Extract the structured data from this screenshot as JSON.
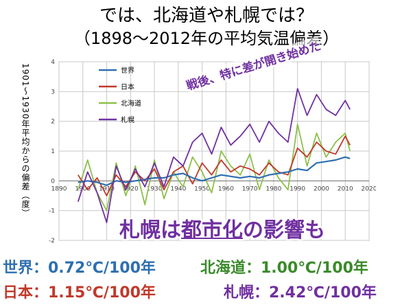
{
  "title": {
    "line1": "では、北海道や札幌では？",
    "line2": "（1898～2012年の平均気温偏差）"
  },
  "ylabel": "1901～1930年平均からの偏差（度）",
  "callouts": {
    "urban_part1": "札幌は",
    "urban_part2": "都市化",
    "urban_part3": "の影響も",
    "postwar": "戦後、特に差が開き始めた"
  },
  "stats": {
    "world": "世界：0.72℃/100年",
    "japan": "日本：1.15℃/100年",
    "hokkaido": "北海道：1.00℃/100年",
    "sapporo": "札幌：2.42℃/100年"
  },
  "colors": {
    "world": "#2e6fb0",
    "japan": "#c0392b",
    "hokkaido": "#8cc04a",
    "sapporo": "#7030a0"
  },
  "chart_data": {
    "type": "line",
    "title": "",
    "xlabel": "",
    "ylabel": "1901～1930年平均からの偏差（度）",
    "xlim": [
      1890,
      2020
    ],
    "ylim": [
      -2,
      4
    ],
    "xticks": [
      1890,
      1900,
      1910,
      1920,
      1930,
      1940,
      1950,
      1960,
      1970,
      1980,
      1990,
      2000,
      2010,
      2020
    ],
    "yticks": [
      -2,
      -1,
      0,
      1,
      2,
      3,
      4
    ],
    "grid": true,
    "legend_position": "top-left",
    "series": [
      {
        "name": "世界",
        "x": [
          1898,
          1902,
          1906,
          1910,
          1914,
          1918,
          1922,
          1926,
          1930,
          1934,
          1938,
          1942,
          1946,
          1950,
          1954,
          1958,
          1962,
          1966,
          1970,
          1974,
          1978,
          1982,
          1986,
          1990,
          1994,
          1998,
          2002,
          2006,
          2010,
          2012
        ],
        "y": [
          -0.05,
          0.0,
          -0.05,
          -0.15,
          0.0,
          -0.05,
          0.0,
          0.05,
          0.1,
          0.1,
          0.2,
          0.25,
          0.1,
          0.0,
          0.1,
          0.2,
          0.15,
          0.1,
          0.15,
          0.1,
          0.2,
          0.25,
          0.3,
          0.4,
          0.35,
          0.6,
          0.65,
          0.7,
          0.8,
          0.75
        ]
      },
      {
        "name": "日本",
        "x": [
          1898,
          1902,
          1906,
          1910,
          1914,
          1918,
          1922,
          1926,
          1930,
          1934,
          1938,
          1942,
          1946,
          1950,
          1954,
          1958,
          1962,
          1966,
          1970,
          1974,
          1978,
          1982,
          1986,
          1990,
          1994,
          1998,
          2002,
          2006,
          2010,
          2012
        ],
        "y": [
          0.2,
          -0.3,
          0.1,
          -0.5,
          0.2,
          -0.2,
          0.3,
          0.0,
          0.4,
          -0.3,
          0.3,
          0.5,
          -0.1,
          0.6,
          0.2,
          0.7,
          0.3,
          0.5,
          0.4,
          0.2,
          0.6,
          0.3,
          0.2,
          1.1,
          0.8,
          1.3,
          1.0,
          0.9,
          1.5,
          1.2
        ]
      },
      {
        "name": "北海道",
        "x": [
          1898,
          1902,
          1906,
          1910,
          1914,
          1918,
          1922,
          1926,
          1930,
          1934,
          1938,
          1942,
          1946,
          1950,
          1954,
          1958,
          1962,
          1966,
          1970,
          1974,
          1978,
          1982,
          1986,
          1990,
          1994,
          1998,
          2002,
          2006,
          2010,
          2012
        ],
        "y": [
          -0.3,
          0.7,
          -0.4,
          -1.0,
          0.6,
          -0.5,
          0.5,
          -0.8,
          0.7,
          -0.6,
          0.3,
          -0.2,
          0.8,
          0.3,
          -0.4,
          1.0,
          0.5,
          0.2,
          0.9,
          -0.3,
          0.7,
          0.1,
          -0.3,
          1.9,
          0.5,
          1.6,
          0.8,
          1.3,
          1.6,
          1.0
        ]
      },
      {
        "name": "札幌",
        "x": [
          1898,
          1902,
          1906,
          1910,
          1914,
          1918,
          1922,
          1926,
          1930,
          1934,
          1938,
          1942,
          1946,
          1950,
          1954,
          1958,
          1962,
          1966,
          1970,
          1974,
          1978,
          1982,
          1986,
          1990,
          1994,
          1998,
          2002,
          2006,
          2010,
          2012
        ],
        "y": [
          -0.7,
          0.3,
          -0.4,
          -1.4,
          0.5,
          -0.3,
          0.4,
          -0.2,
          0.6,
          -0.2,
          0.8,
          0.5,
          1.3,
          1.6,
          0.9,
          1.8,
          1.2,
          1.5,
          1.9,
          1.3,
          2.0,
          1.6,
          1.3,
          3.1,
          2.2,
          2.9,
          2.4,
          2.2,
          2.7,
          2.4
        ]
      }
    ]
  }
}
